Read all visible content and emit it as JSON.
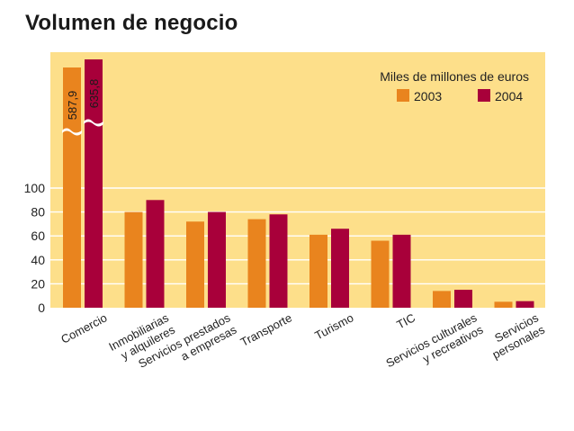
{
  "chart_data": {
    "type": "bar",
    "title": "Volumen de negocio",
    "units_label": "Miles de millones de euros",
    "categories": [
      [
        "Comercio"
      ],
      [
        "Inmobiliarias",
        "y alquileres"
      ],
      [
        "Servicios prestados",
        "a empresas"
      ],
      [
        "Transporte"
      ],
      [
        "Turismo"
      ],
      [
        "TIC"
      ],
      [
        "Servicios culturales",
        "y recreativos"
      ],
      [
        "Servicios",
        "personales"
      ]
    ],
    "series": [
      {
        "name": "2003",
        "color": "#e9841e",
        "values": [
          587.9,
          80,
          72,
          74,
          61,
          56,
          14,
          5
        ]
      },
      {
        "name": "2004",
        "color": "#a8003a",
        "values": [
          635.8,
          90,
          80,
          78,
          66,
          61,
          15,
          5.5
        ]
      }
    ],
    "value_labels": [
      "587,9",
      "635,8"
    ],
    "yticks": [
      0,
      20,
      40,
      60,
      80,
      100
    ],
    "ylim": [
      0,
      100
    ],
    "axis_break": true,
    "grid": true,
    "background_color": "#fddf8a",
    "legend_position": "top-right"
  }
}
